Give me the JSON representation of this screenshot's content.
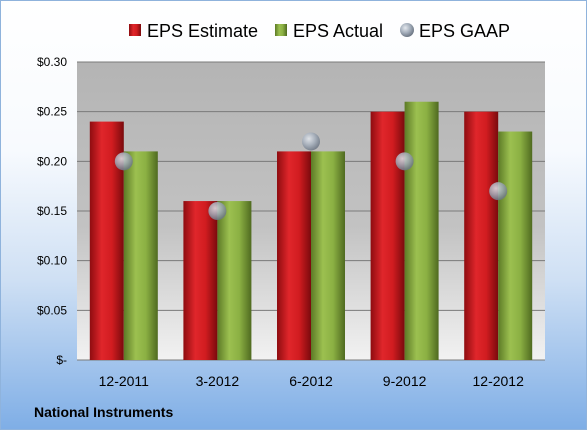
{
  "footer": {
    "company": "National Instruments"
  },
  "colors": {
    "estimate": "#c8181c",
    "actual": "#7fa33c",
    "gaap": "#9aa6b4",
    "gridline": "#7a7a7a"
  },
  "chart_data": {
    "type": "bar",
    "title": "",
    "xlabel": "",
    "ylabel": "",
    "categories": [
      "12-2011",
      "3-2012",
      "6-2012",
      "9-2012",
      "12-2012"
    ],
    "series": [
      {
        "name": "EPS Estimate",
        "kind": "bar",
        "color": "#c8181c",
        "values": [
          0.24,
          0.16,
          0.21,
          0.25,
          0.25
        ]
      },
      {
        "name": "EPS Actual",
        "kind": "bar",
        "color": "#7fa33c",
        "values": [
          0.21,
          0.16,
          0.21,
          0.26,
          0.23
        ]
      },
      {
        "name": "EPS GAAP",
        "kind": "point",
        "color": "#9aa6b4",
        "values": [
          0.2,
          0.15,
          0.22,
          0.2,
          0.17
        ]
      }
    ],
    "ylim": [
      0,
      0.3
    ],
    "yticks": [
      0,
      0.05,
      0.1,
      0.15,
      0.2,
      0.25,
      0.3
    ],
    "ytick_labels": [
      "$-",
      "$0.05",
      "$0.10",
      "$0.15",
      "$0.20",
      "$0.25",
      "$0.30"
    ],
    "grid": true,
    "legend_position": "top"
  }
}
